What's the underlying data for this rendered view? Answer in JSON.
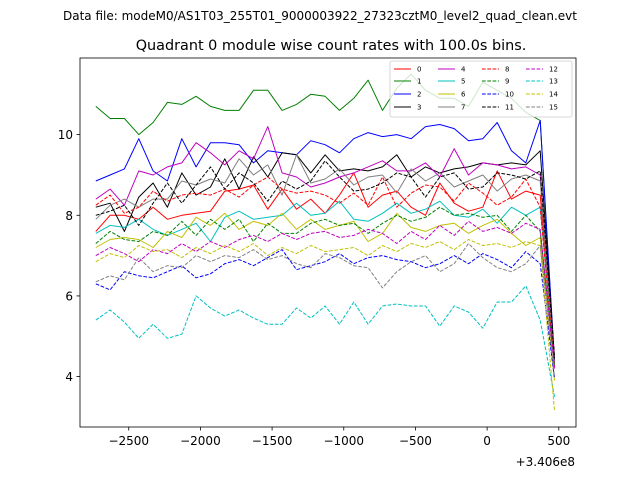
{
  "suptitle": "Data file: modeM0/AS1T03_255T01_9000003922_27323cztM0_level2_quad_clean.evt",
  "chart_data": {
    "type": "line",
    "title": "Quadrant 0 module wise count rates with 100.0s bins.",
    "xlabel": "",
    "ylabel": "",
    "x_offset_label": "+3.406e8",
    "xlim": [
      -2840,
      620
    ],
    "ylim": [
      2.75,
      11.9
    ],
    "xticks": [
      -2500,
      -2000,
      -1500,
      -1000,
      -500,
      0,
      500
    ],
    "xtick_labels": [
      "−2500",
      "−2000",
      "−1500",
      "−1000",
      "−500",
      "0",
      "500"
    ],
    "yticks": [
      4,
      6,
      8,
      10
    ],
    "ytick_labels": [
      "4",
      "6",
      "8",
      "10"
    ],
    "grid": false,
    "legend_position": "top-right",
    "x": [
      -2730,
      -2630,
      -2530,
      -2430,
      -2330,
      -2230,
      -2130,
      -2030,
      -1930,
      -1830,
      -1730,
      -1630,
      -1530,
      -1430,
      -1330,
      -1230,
      -1130,
      -1030,
      -930,
      -830,
      -730,
      -630,
      -530,
      -430,
      -330,
      -230,
      -130,
      -30,
      70,
      170,
      270,
      370,
      470
    ],
    "series": [
      {
        "name": "0",
        "color": "#ff0000",
        "dash": "solid",
        "values": [
          7.6,
          8.0,
          8.0,
          7.9,
          8.2,
          7.9,
          8.0,
          8.05,
          8.1,
          8.6,
          8.65,
          8.75,
          8.15,
          8.65,
          8.15,
          8.4,
          8.05,
          8.5,
          9.05,
          8.2,
          8.5,
          8.6,
          8.2,
          8.0,
          8.8,
          8.3,
          8.1,
          8.2,
          9.1,
          8.4,
          8.6,
          8.5,
          4.5
        ]
      },
      {
        "name": "1",
        "color": "#008000",
        "dash": "solid",
        "values": [
          10.7,
          10.4,
          10.4,
          10.0,
          10.3,
          10.8,
          10.75,
          10.95,
          10.7,
          10.6,
          10.6,
          11.1,
          11.1,
          10.6,
          10.75,
          11.0,
          10.95,
          10.6,
          10.9,
          11.35,
          10.6,
          11.15,
          11.5,
          11.1,
          10.9,
          10.9,
          10.7,
          11.3,
          11.1,
          10.9,
          10.55,
          10.35,
          4.3
        ]
      },
      {
        "name": "2",
        "color": "#0000ff",
        "dash": "solid",
        "values": [
          8.85,
          9.0,
          9.15,
          9.9,
          9.1,
          8.85,
          9.9,
          9.2,
          9.8,
          9.8,
          9.75,
          9.3,
          9.6,
          9.55,
          9.5,
          9.85,
          9.75,
          9.55,
          9.9,
          10.05,
          9.95,
          10.0,
          9.9,
          10.2,
          10.25,
          10.15,
          9.85,
          9.9,
          10.3,
          9.6,
          9.3,
          10.35,
          4.4
        ]
      },
      {
        "name": "3",
        "color": "#000000",
        "dash": "solid",
        "values": [
          8.2,
          8.3,
          7.6,
          8.45,
          8.8,
          8.2,
          9.05,
          8.5,
          8.7,
          9.4,
          8.65,
          9.45,
          8.95,
          9.55,
          9.5,
          9.05,
          9.5,
          9.1,
          9.15,
          9.1,
          9.2,
          9.5,
          8.95,
          9.2,
          9.05,
          9.15,
          9.2,
          9.3,
          9.25,
          9.3,
          9.25,
          9.6,
          4.45
        ]
      },
      {
        "name": "4",
        "color": "#c000c0",
        "dash": "solid",
        "values": [
          8.4,
          8.65,
          8.25,
          9.1,
          9.0,
          9.2,
          9.3,
          9.8,
          9.55,
          9.25,
          9.6,
          9.4,
          10.2,
          9.05,
          8.95,
          8.7,
          8.8,
          8.95,
          9.05,
          9.2,
          9.35,
          9.1,
          9.1,
          9.3,
          8.95,
          9.65,
          9.0,
          9.3,
          9.25,
          9.15,
          9.2,
          9.0,
          4.4
        ]
      },
      {
        "name": "5",
        "color": "#00c0c0",
        "dash": "solid",
        "values": [
          7.55,
          7.75,
          7.7,
          7.9,
          7.65,
          7.5,
          7.65,
          7.8,
          7.35,
          7.95,
          8.1,
          7.9,
          7.95,
          8.0,
          8.3,
          8.0,
          8.05,
          8.35,
          7.9,
          7.85,
          8.05,
          8.3,
          8.05,
          8.15,
          8.35,
          8.0,
          7.95,
          8.15,
          7.8,
          8.2,
          8.0,
          8.2,
          4.3
        ]
      },
      {
        "name": "6",
        "color": "#c0c000",
        "dash": "solid",
        "values": [
          7.2,
          7.4,
          7.45,
          7.4,
          7.2,
          7.6,
          7.45,
          7.95,
          7.75,
          8.05,
          7.65,
          7.85,
          7.75,
          8.05,
          7.65,
          7.9,
          7.65,
          7.75,
          7.85,
          7.35,
          7.55,
          8.05,
          7.7,
          7.6,
          7.75,
          7.8,
          7.55,
          7.75,
          7.9,
          7.55,
          7.25,
          7.45,
          3.9
        ]
      },
      {
        "name": "7",
        "color": "#808080",
        "dash": "solid",
        "values": [
          7.9,
          8.25,
          8.4,
          8.2,
          8.4,
          8.4,
          8.85,
          8.75,
          8.9,
          8.8,
          9.4,
          9.0,
          9.25,
          8.5,
          9.5,
          8.8,
          8.9,
          9.15,
          8.75,
          8.95,
          9.0,
          8.55,
          9.15,
          8.85,
          9.05,
          8.7,
          8.85,
          9.0,
          8.6,
          8.9,
          9.0,
          8.85,
          4.3
        ]
      },
      {
        "name": "8",
        "color": "#ff0000",
        "dash": "dashed",
        "values": [
          8.25,
          8.5,
          8.05,
          8.2,
          8.6,
          8.35,
          8.5,
          8.55,
          8.5,
          8.65,
          8.45,
          8.75,
          8.95,
          8.65,
          8.55,
          8.6,
          8.5,
          8.3,
          8.55,
          8.25,
          8.95,
          8.2,
          8.55,
          8.75,
          8.7,
          8.35,
          8.8,
          8.55,
          8.25,
          8.45,
          8.9,
          8.2,
          4.25
        ]
      },
      {
        "name": "9",
        "color": "#008000",
        "dash": "dashed",
        "values": [
          7.3,
          7.6,
          7.4,
          7.35,
          7.6,
          7.5,
          7.85,
          7.5,
          7.9,
          7.65,
          7.9,
          7.35,
          7.8,
          7.55,
          7.55,
          7.8,
          7.9,
          7.75,
          7.8,
          7.55,
          7.8,
          8.0,
          7.85,
          7.95,
          8.2,
          8.0,
          8.05,
          7.95,
          8.0,
          7.6,
          8.0,
          7.6,
          4.3
        ]
      },
      {
        "name": "10",
        "color": "#0000ff",
        "dash": "dashed",
        "values": [
          6.3,
          6.15,
          6.6,
          6.5,
          6.45,
          6.6,
          6.75,
          6.45,
          6.55,
          6.8,
          6.9,
          6.75,
          6.95,
          7.15,
          6.65,
          6.75,
          6.85,
          7.05,
          6.8,
          6.95,
          7.0,
          6.9,
          6.85,
          6.7,
          6.8,
          7.0,
          6.8,
          7.05,
          6.9,
          6.7,
          7.1,
          6.8,
          3.95
        ]
      },
      {
        "name": "11",
        "color": "#000000",
        "dash": "dashed",
        "values": [
          8.0,
          8.1,
          8.25,
          7.75,
          8.3,
          8.8,
          8.3,
          8.75,
          9.2,
          8.65,
          9.05,
          8.8,
          8.35,
          8.85,
          8.65,
          8.85,
          9.35,
          8.95,
          8.6,
          8.65,
          8.8,
          9.05,
          8.95,
          8.45,
          8.95,
          9.05,
          8.65,
          8.7,
          9.05,
          9.0,
          8.9,
          9.1,
          4.45
        ]
      },
      {
        "name": "12",
        "color": "#c000c0",
        "dash": "dashed",
        "values": [
          7.0,
          7.2,
          7.05,
          6.85,
          7.15,
          7.05,
          7.3,
          7.1,
          7.35,
          7.2,
          7.4,
          7.5,
          7.35,
          7.55,
          7.4,
          7.55,
          7.6,
          7.45,
          7.5,
          7.65,
          7.55,
          7.3,
          7.6,
          7.4,
          7.75,
          7.5,
          7.85,
          7.6,
          7.7,
          7.55,
          7.8,
          7.65,
          4.2
        ]
      },
      {
        "name": "13",
        "color": "#00c0c0",
        "dash": "dashed",
        "values": [
          5.4,
          5.65,
          5.35,
          4.95,
          5.3,
          4.95,
          5.05,
          6.0,
          5.7,
          5.5,
          5.65,
          5.45,
          5.3,
          5.3,
          5.7,
          5.45,
          5.75,
          5.3,
          5.85,
          5.3,
          5.75,
          5.8,
          5.75,
          5.75,
          5.25,
          5.75,
          5.6,
          5.2,
          5.85,
          5.85,
          6.25,
          5.4,
          3.5
        ]
      },
      {
        "name": "14",
        "color": "#c0c000",
        "dash": "dashed",
        "values": [
          6.85,
          7.05,
          6.95,
          7.25,
          7.1,
          7.15,
          6.95,
          7.2,
          7.05,
          7.25,
          7.1,
          7.3,
          7.0,
          7.2,
          7.05,
          7.25,
          7.1,
          7.15,
          7.2,
          7.0,
          7.25,
          7.1,
          7.3,
          7.2,
          7.35,
          7.15,
          7.4,
          7.25,
          7.3,
          7.2,
          7.35,
          7.25,
          3.15
        ]
      },
      {
        "name": "15",
        "color": "#808080",
        "dash": "dashed",
        "values": [
          6.35,
          6.5,
          6.4,
          6.95,
          6.6,
          6.75,
          6.7,
          7.0,
          6.85,
          7.0,
          6.95,
          7.15,
          6.9,
          7.0,
          6.8,
          6.7,
          7.05,
          6.95,
          6.75,
          6.7,
          6.2,
          6.6,
          6.85,
          7.0,
          6.6,
          6.8,
          7.3,
          6.95,
          6.7,
          6.6,
          6.8,
          7.25,
          4.0
        ]
      }
    ]
  }
}
